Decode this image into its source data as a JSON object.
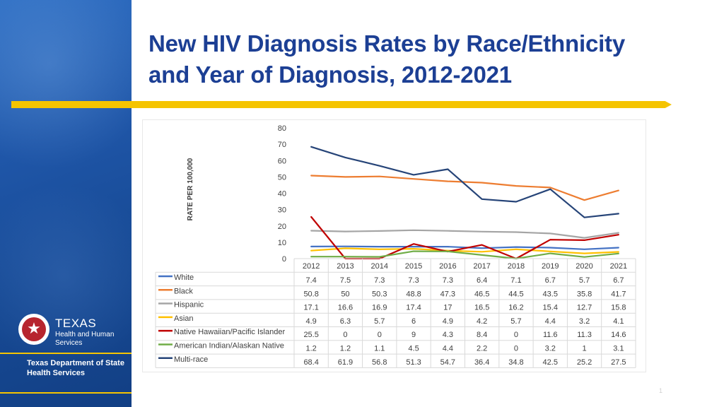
{
  "slide": {
    "title_line1": "New HIV Diagnosis Rates by Race/Ethnicity",
    "title_line2": "and Year of Diagnosis, 2012-2021",
    "logo_main": "TEXAS",
    "logo_sub1": "Health and Human",
    "logo_sub2": "Services",
    "dshs_line1": "Texas Department of State",
    "dshs_line2": "Health Services",
    "page_number": "1"
  },
  "chart_data": {
    "type": "line",
    "title": "",
    "ylabel": "RATE PER 100,000",
    "xlabel": "",
    "ylim": [
      0,
      80
    ],
    "yticks": [
      0,
      10,
      20,
      30,
      40,
      50,
      60,
      70,
      80
    ],
    "categories": [
      "2012",
      "2013",
      "2014",
      "2015",
      "2016",
      "2017",
      "2018",
      "2019",
      "2020",
      "2021"
    ],
    "series": [
      {
        "name": "White",
        "color": "#4472c4",
        "values": [
          7.4,
          7.5,
          7.3,
          7.3,
          7.3,
          6.4,
          7.1,
          6.7,
          5.7,
          6.7
        ]
      },
      {
        "name": "Black",
        "color": "#ed7d31",
        "values": [
          50.8,
          50,
          50.3,
          48.8,
          47.3,
          46.5,
          44.5,
          43.5,
          35.8,
          41.7
        ]
      },
      {
        "name": "Hispanic",
        "color": "#a5a5a5",
        "values": [
          17.1,
          16.6,
          16.9,
          17.4,
          17,
          16.5,
          16.2,
          15.4,
          12.7,
          15.8
        ]
      },
      {
        "name": "Asian",
        "color": "#ffc000",
        "values": [
          4.9,
          6.3,
          5.7,
          6,
          4.9,
          4.2,
          5.7,
          4.4,
          3.2,
          4.1
        ]
      },
      {
        "name": "Native Hawaiian/Pacific Islander",
        "color": "#c00000",
        "values": [
          25.5,
          0,
          0,
          9,
          4.3,
          8.4,
          0,
          11.6,
          11.3,
          14.6
        ]
      },
      {
        "name": "American Indian/Alaskan Native",
        "color": "#70ad47",
        "values": [
          1.2,
          1.2,
          1.1,
          4.5,
          4.4,
          2.2,
          0,
          3.2,
          1,
          3.1
        ]
      },
      {
        "name": "Multi-race",
        "color": "#264478",
        "values": [
          68.4,
          61.9,
          56.8,
          51.3,
          54.7,
          36.4,
          34.8,
          42.5,
          25.2,
          27.5
        ]
      }
    ]
  }
}
